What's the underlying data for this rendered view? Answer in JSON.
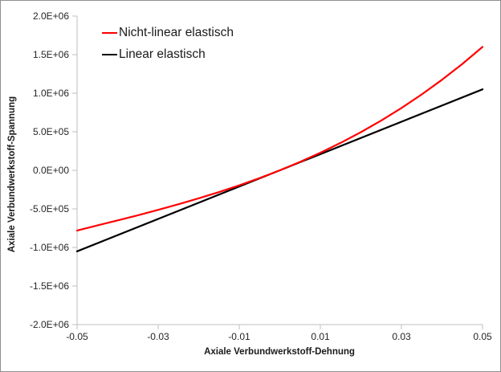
{
  "chart_data": {
    "type": "line",
    "title": "",
    "xlabel": "Axiale Verbundwerkstoff-Dehnung",
    "ylabel": "Axiale Verbundwerkstoff-Spannung",
    "xlim": [
      -0.05,
      0.05
    ],
    "ylim": [
      -2000000,
      2000000
    ],
    "grid": false,
    "legend_position": "top-left-inside",
    "x_ticks": {
      "values": [
        -0.05,
        -0.03,
        -0.01,
        0.01,
        0.03,
        0.05
      ],
      "labels": [
        "-0.05",
        "-0.03",
        "-0.01",
        "0.01",
        "0.03",
        "0.05"
      ]
    },
    "y_ticks": {
      "values": [
        2000000,
        1500000,
        1000000,
        500000,
        0,
        -500000,
        -1000000,
        -1500000,
        -2000000
      ],
      "labels": [
        "2.0E+06",
        "1.5E+06",
        "1.0E+06",
        "5.0E+05",
        "0.0E+00",
        "-5.0E+05",
        "-1.0E+06",
        "-1.5E+06",
        "-2.0E+06"
      ]
    },
    "series": [
      {
        "name": "Nicht-linear elastisch",
        "color": "#FF0000",
        "points": [
          [
            -0.05,
            -780000
          ],
          [
            -0.045,
            -715000
          ],
          [
            -0.04,
            -649000
          ],
          [
            -0.035,
            -582000
          ],
          [
            -0.03,
            -513000
          ],
          [
            -0.025,
            -440000
          ],
          [
            -0.02,
            -363000
          ],
          [
            -0.015,
            -282000
          ],
          [
            -0.01,
            -195000
          ],
          [
            -0.005,
            -101000
          ],
          [
            0.0,
            0
          ],
          [
            0.005,
            109000
          ],
          [
            0.01,
            228000
          ],
          [
            0.015,
            356000
          ],
          [
            0.02,
            495000
          ],
          [
            0.025,
            645000
          ],
          [
            0.03,
            808000
          ],
          [
            0.035,
            984000
          ],
          [
            0.04,
            1174000
          ],
          [
            0.045,
            1379000
          ],
          [
            0.05,
            1600000
          ]
        ]
      },
      {
        "name": "Linear elastisch",
        "color": "#000000",
        "points": [
          [
            -0.05,
            -1050000
          ],
          [
            0.0,
            0
          ],
          [
            0.05,
            1050000
          ]
        ]
      }
    ]
  },
  "colors": {
    "axis_line": "#BFBFBF",
    "tick_text": "#262626",
    "frame_border": "#8F8F8F",
    "background": "#FFFFFF"
  }
}
